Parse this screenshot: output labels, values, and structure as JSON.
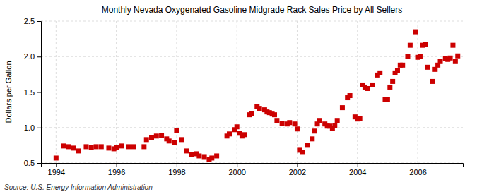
{
  "chart_data": {
    "type": "scatter",
    "title": "Monthly Nevada Oxygenated Gasoline Midgrade Rack Sales Price by All Sellers",
    "y_label": "Dollars per Gallon",
    "annotations": [
      "Source: U.S. Energy Information Administration"
    ],
    "color": "#cc0000",
    "marker": "square",
    "grid": true,
    "xlim": [
      1993.5,
      2007.5
    ],
    "ylim": [
      0.5,
      2.5
    ],
    "xticks": [
      1994,
      1996,
      1998,
      2000,
      2002,
      2004,
      2006
    ],
    "yticks": [
      0.5,
      {
        "value": 1,
        "label": "1.0"
      },
      1.5,
      {
        "value": 2,
        "label": "2.0"
      },
      2.5
    ],
    "x": [
      1994.0,
      1994.25,
      1994.42,
      1994.58,
      1994.75,
      1995.0,
      1995.17,
      1995.33,
      1995.5,
      1995.75,
      1995.92,
      1996.0,
      1996.17,
      1996.42,
      1996.58,
      1996.92,
      1997.0,
      1997.17,
      1997.33,
      1997.5,
      1997.67,
      1997.75,
      1997.92,
      1998.0,
      1998.17,
      1998.33,
      1998.5,
      1998.67,
      1998.75,
      1998.92,
      1999.08,
      1999.17,
      1999.33,
      1999.67,
      1999.75,
      1999.92,
      2000.0,
      2000.08,
      2000.17,
      2000.25,
      2000.42,
      2000.5,
      2000.67,
      2000.75,
      2000.92,
      2001.0,
      2001.08,
      2001.17,
      2001.25,
      2001.33,
      2001.5,
      2001.67,
      2001.75,
      2001.92,
      2002.0,
      2002.08,
      2002.17,
      2002.33,
      2002.5,
      2002.58,
      2002.67,
      2002.75,
      2002.92,
      2003.0,
      2003.08,
      2003.17,
      2003.25,
      2003.33,
      2003.5,
      2003.67,
      2003.75,
      2003.92,
      2004.0,
      2004.08,
      2004.17,
      2004.25,
      2004.33,
      2004.5,
      2004.67,
      2004.75,
      2004.92,
      2005.0,
      2005.08,
      2005.17,
      2005.25,
      2005.33,
      2005.42,
      2005.5,
      2005.67,
      2005.75,
      2005.92,
      2006.0,
      2006.08,
      2006.17,
      2006.25,
      2006.33,
      2006.5,
      2006.58,
      2006.67,
      2006.75,
      2006.92,
      2007.0,
      2007.08,
      2007.17,
      2007.25,
      2007.33
    ],
    "values": [
      0.57,
      0.74,
      0.73,
      0.71,
      0.67,
      0.73,
      0.72,
      0.73,
      0.73,
      0.71,
      0.7,
      0.72,
      0.74,
      0.73,
      0.73,
      0.73,
      0.83,
      0.86,
      0.88,
      0.89,
      0.84,
      0.81,
      0.79,
      0.96,
      0.83,
      0.67,
      0.62,
      0.63,
      0.6,
      0.58,
      0.55,
      0.57,
      0.6,
      0.88,
      0.91,
      0.97,
      1.01,
      0.92,
      0.88,
      0.9,
      1.18,
      1.2,
      1.3,
      1.27,
      1.25,
      1.22,
      1.21,
      1.19,
      1.18,
      1.1,
      1.06,
      1.05,
      1.07,
      1.05,
      0.98,
      0.68,
      0.65,
      0.75,
      0.84,
      0.95,
      1.05,
      1.1,
      1.05,
      1.02,
      1.02,
      0.99,
      1.03,
      1.1,
      1.28,
      1.42,
      1.45,
      1.15,
      1.12,
      1.13,
      1.6,
      1.57,
      1.55,
      1.6,
      1.74,
      1.77,
      1.4,
      1.4,
      1.57,
      1.65,
      1.77,
      1.8,
      1.88,
      1.88,
      2.0,
      2.16,
      2.35,
      1.99,
      2.0,
      2.16,
      2.17,
      1.85,
      1.65,
      1.82,
      1.88,
      1.93,
      1.97,
      1.96,
      1.98,
      2.16,
      1.93,
      2.01
    ]
  }
}
